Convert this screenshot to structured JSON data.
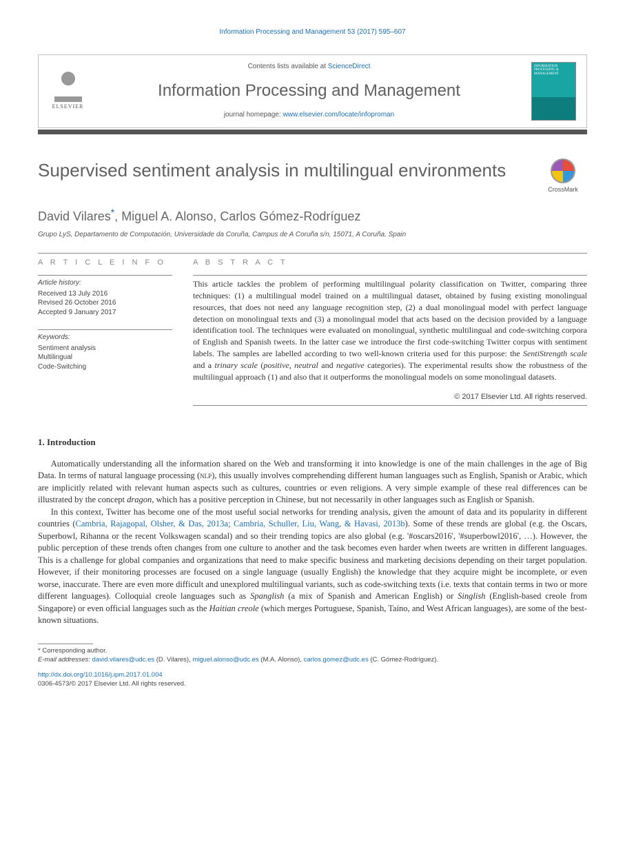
{
  "running_header": "Information Processing and Management 53 (2017) 595–607",
  "masthead": {
    "contents_prefix": "Contents lists available at ",
    "contents_link": "ScienceDirect",
    "journal_title": "Information Processing and Management",
    "homepage_prefix": "journal homepage: ",
    "homepage_url": "www.elsevier.com/locate/infoproman",
    "elsevier_label": "ELSEVIER",
    "cover_text": "INFORMATION PROCESSING & MANAGEMENT"
  },
  "article": {
    "title": "Supervised sentiment analysis in multilingual environments",
    "crossmark_label": "CrossMark",
    "authors_html": "David Vilares*, Miguel A. Alonso, Carlos Gómez-Rodríguez",
    "affiliation": "Grupo LyS, Departamento de Computación, Universidade da Coruña, Campus de A Coruña s/n, 15071, A Coruña, Spain"
  },
  "info": {
    "heading": "A R T I C L E   I N F O",
    "history_label": "Article history:",
    "received": "Received 13 July 2016",
    "revised": "Revised 26 October 2016",
    "accepted": "Accepted 9 January 2017",
    "kw_label": "Keywords:",
    "kw1": "Sentiment analysis",
    "kw2": "Multilingual",
    "kw3": "Code-Switching"
  },
  "abstract": {
    "heading": "A B S T R A C T",
    "text_parts": [
      "This article tackles the problem of performing multilingual polarity classification on Twitter, comparing three techniques: (1) a multilingual model trained on a multilingual dataset, obtained by fusing existing monolingual resources, that does not need any language recognition step, (2) a dual monolingual model with perfect language detection on monolingual texts and (3) a monolingual model that acts based on the decision provided by a language identification tool. The techniques were evaluated on monolingual, synthetic multilingual and code-switching corpora of English and Spanish tweets. In the latter case we introduce the first code-switching Twitter corpus with sentiment labels. The samples are labelled according to two well-known criteria used for this purpose: the ",
      "SentiStrength scale",
      " and a ",
      "trinary scale",
      " (",
      "positive, neutral",
      " and ",
      "negative",
      " categories). The experimental results show the robustness of the multilingual approach (1) and also that it outperforms the monolingual models on some monolingual datasets."
    ],
    "copyright": "© 2017 Elsevier Ltd. All rights reserved."
  },
  "body": {
    "section_title": "1. Introduction",
    "para1_parts": [
      "Automatically understanding all the information shared on the Web and transforming it into knowledge is one of the main challenges in the age of Big Data. In terms of natural language processing (",
      "nlp",
      "), this usually involves comprehending different human languages such as English, Spanish or Arabic, which are implicitly related with relevant human aspects such as cultures, countries or even religions. A very simple example of these real differences can be illustrated by the concept ",
      "dragon",
      ", which has a positive perception in Chinese, but not necessarily in other languages such as English or Spanish."
    ],
    "para2_parts": [
      "In this context, Twitter has become one of the most useful social networks for trending analysis, given the amount of data and its popularity in different countries (",
      "Cambria, Rajagopal, Olsher, & Das, 2013a; Cambria, Schuller, Liu, Wang, & Havasi, 2013b",
      "). Some of these trends are global (e.g. the Oscars, Superbowl, Rihanna or the recent Volkswagen scandal) and so their trending topics are also global (e.g. '#oscars2016', '#superbowl2016', …). However, the public perception of these trends often changes from one culture to another and the task becomes even harder when tweets are written in different languages. This is a challenge for global companies and organizations that need to make specific business and marketing decisions depending on their target population. However, if their monitoring processes are focused on a single language (usually English) the knowledge that they acquire might be incomplete, or even worse, inaccurate. There are even more difficult and unexplored multilingual variants, such as code-switching texts (i.e. texts that contain terms in two or more different languages). Colloquial creole languages such as ",
      "Spanglish",
      " (a mix of Spanish and American English) or ",
      "Singlish",
      " (English-based creole from Singapore) or even official languages such as the ",
      "Haitian creole",
      " (which merges Portuguese, Spanish, Taíno, and West African languages), are some of the best-known situations."
    ]
  },
  "footnotes": {
    "corr": "* Corresponding author.",
    "email_label": "E-mail addresses: ",
    "emails": [
      {
        "addr": "david.vilares@udc.es",
        "who": " (D. Vilares), "
      },
      {
        "addr": "miguel.alonso@udc.es",
        "who": " (M.A. Alonso), "
      },
      {
        "addr": "carlos.gomez@udc.es",
        "who": " (C. Gómez-Rodríguez)."
      }
    ]
  },
  "footer": {
    "doi": "http://dx.doi.org/10.1016/j.ipm.2017.01.004",
    "line2": "0306-4573/© 2017 Elsevier Ltd. All rights reserved."
  },
  "colors": {
    "link": "#1a6fb5",
    "rule": "#555555",
    "heading_grey": "#606060"
  }
}
